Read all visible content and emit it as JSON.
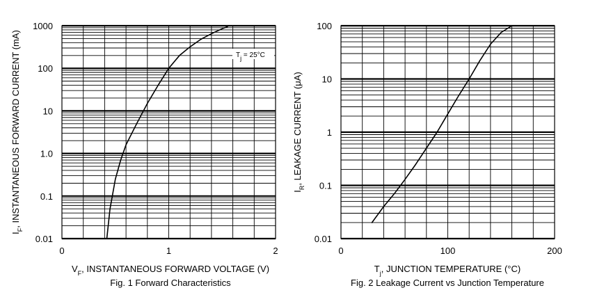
{
  "chart_data": [
    {
      "type": "line",
      "caption": "Fig. 1  Forward Characteristics",
      "xlabel": "V<sub>F</sub>, INSTANTANEOUS FORWARD VOLTAGE (V)",
      "xlabel_parts": [
        "V",
        "F",
        ", INSTANTANEOUS FORWARD VOLTAGE (V)"
      ],
      "ylabel_parts": [
        "I",
        "F",
        ", INSTANTANEOUS FORWARD CURRENT (mA)"
      ],
      "x_ticks": [
        "0",
        "1",
        "2"
      ],
      "y_ticks": [
        "1000",
        "100",
        "10",
        "1.0",
        "0.1",
        "0.01"
      ],
      "xlim": [
        0,
        2
      ],
      "ylim": [
        0.01,
        1000
      ],
      "y_scale": "log",
      "grid": true,
      "annotation_parts": [
        "T",
        "j",
        " = 25°C"
      ],
      "series": [
        {
          "x": [
            0.42,
            0.45,
            0.5,
            0.55,
            0.6,
            0.7,
            0.8,
            0.9,
            1.0,
            1.1,
            1.2,
            1.3,
            1.4,
            1.5,
            1.55
          ],
          "y": [
            0.01,
            0.05,
            0.25,
            0.7,
            1.6,
            5,
            15,
            40,
            100,
            200,
            320,
            480,
            650,
            850,
            950
          ]
        }
      ]
    },
    {
      "type": "line",
      "caption": "Fig. 2  Leakage Current vs Junction Temperature",
      "xlabel_parts": [
        "T",
        "j",
        ", JUNCTION TEMPERATURE (°C)"
      ],
      "ylabel_parts": [
        "I",
        "R",
        ", LEAKAGE CURRENT (μA)"
      ],
      "x_ticks": [
        "0",
        "100",
        "200"
      ],
      "y_ticks": [
        "100",
        "10",
        "1",
        "0.1",
        "0.01"
      ],
      "xlim": [
        0,
        200
      ],
      "ylim": [
        0.01,
        100
      ],
      "y_scale": "log",
      "grid": true,
      "series": [
        {
          "x": [
            29,
            40,
            50,
            60,
            70,
            80,
            90,
            100,
            110,
            120,
            130,
            140,
            150,
            160
          ],
          "y": [
            0.02,
            0.04,
            0.07,
            0.13,
            0.25,
            0.5,
            1.0,
            2.2,
            4.8,
            10,
            22,
            45,
            75,
            100
          ]
        }
      ]
    }
  ]
}
